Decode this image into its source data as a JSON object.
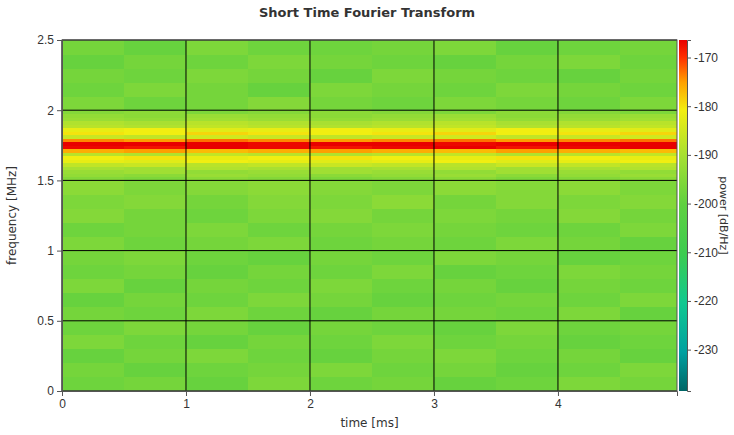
{
  "chart_data": {
    "type": "heatmap",
    "title": "Short Time Fourier Transform",
    "x_label": "time [ms]",
    "y_label": "frequency [MHz]",
    "xlim": [
      0,
      4.96
    ],
    "xticks": [
      0,
      1,
      2,
      3,
      4
    ],
    "ylim": [
      0,
      2.5
    ],
    "yticks": [
      0,
      0.5,
      1,
      1.5,
      2,
      2.5
    ],
    "grid": true,
    "time_bins": [
      0,
      0.5,
      1,
      1.5,
      2,
      2.5,
      3,
      3.5,
      4,
      4.5,
      4.96
    ],
    "frequency_bins": [
      0,
      0.1,
      0.2,
      0.3,
      0.4,
      0.5,
      0.6,
      0.7,
      0.8,
      0.9,
      1,
      1.1,
      1.2,
      1.3,
      1.4,
      1.5,
      1.525,
      1.55,
      1.575,
      1.6,
      1.625,
      1.65,
      1.675,
      1.7,
      1.725,
      1.75,
      1.775,
      1.8,
      1.825,
      1.85,
      1.875,
      1.9,
      1.925,
      1.95,
      1.975,
      2,
      2.1,
      2.2,
      2.3,
      2.4,
      2.5
    ],
    "z": [
      [
        -198,
        -197,
        -199,
        -196,
        -198,
        -197,
        -199,
        -198,
        -196,
        -197
      ],
      [
        -197,
        -199,
        -198,
        -197,
        -196,
        -198,
        -197,
        -199,
        -198,
        -196
      ],
      [
        -199,
        -197,
        -196,
        -198,
        -199,
        -197,
        -196,
        -198,
        -197,
        -199
      ],
      [
        -196,
        -198,
        -199,
        -197,
        -198,
        -196,
        -198,
        -197,
        -199,
        -198
      ],
      [
        -198,
        -196,
        -197,
        -199,
        -197,
        -198,
        -199,
        -196,
        -198,
        -197
      ],
      [
        -197,
        -198,
        -196,
        -198,
        -199,
        -197,
        -197,
        -198,
        -196,
        -199
      ],
      [
        -199,
        -197,
        -198,
        -196,
        -197,
        -199,
        -198,
        -197,
        -198,
        -196
      ],
      [
        -196,
        -199,
        -197,
        -198,
        -196,
        -198,
        -197,
        -199,
        -197,
        -198
      ],
      [
        -198,
        -197,
        -199,
        -197,
        -198,
        -196,
        -199,
        -198,
        -196,
        -197
      ],
      [
        -197,
        -196,
        -198,
        -199,
        -197,
        -198,
        -196,
        -197,
        -199,
        -198
      ],
      [
        -196,
        -198,
        -197,
        -196,
        -198,
        -197,
        -198,
        -196,
        -197,
        -199
      ],
      [
        -198,
        -197,
        -196,
        -198,
        -197,
        -196,
        -197,
        -198,
        -198,
        -196
      ],
      [
        -195,
        -197,
        -198,
        -196,
        -195,
        -197,
        -196,
        -197,
        -195,
        -197
      ],
      [
        -196,
        -195,
        -197,
        -195,
        -196,
        -194,
        -197,
        -195,
        -196,
        -195
      ],
      [
        -194,
        -196,
        -195,
        -194,
        -195,
        -196,
        -194,
        -195,
        -194,
        -196
      ],
      [
        -195,
        -196,
        -194,
        -195,
        -196,
        -195,
        -194,
        -196,
        -195,
        -194
      ],
      [
        -193,
        -194,
        -192,
        -193,
        -194,
        -193,
        -192,
        -194,
        -193,
        -192
      ],
      [
        -192,
        -191,
        -193,
        -192,
        -191,
        -192,
        -193,
        -191,
        -192,
        -193
      ],
      [
        -190,
        -191,
        -189,
        -190,
        -191,
        -190,
        -189,
        -191,
        -190,
        -189
      ],
      [
        -187,
        -186,
        -188,
        -187,
        -186,
        -187,
        -188,
        -186,
        -187,
        -188
      ],
      [
        -182,
        -183,
        -181,
        -182,
        -183,
        -182,
        -181,
        -183,
        -182,
        -181
      ],
      [
        -181,
        -180,
        -182,
        -181,
        -180,
        -181,
        -182,
        -180,
        -181,
        -182
      ],
      [
        -188,
        -189,
        -187,
        -188,
        -189,
        -188,
        -187,
        -189,
        -188,
        -187
      ],
      [
        -176,
        -175,
        -177,
        -176,
        -175,
        -176,
        -177,
        -175,
        -176,
        -177
      ],
      [
        -167,
        -168,
        -166,
        -167,
        -168,
        -167,
        -166,
        -168,
        -167,
        -166
      ],
      [
        -166,
        -165,
        -166,
        -167,
        -165,
        -166,
        -167,
        -165,
        -166,
        -165
      ],
      [
        -174,
        -175,
        -173,
        -174,
        -175,
        -174,
        -173,
        -175,
        -174,
        -173
      ],
      [
        -186,
        -187,
        -185,
        -186,
        -187,
        -186,
        -185,
        -187,
        -186,
        -185
      ],
      [
        -180,
        -181,
        -179,
        -180,
        -181,
        -180,
        -179,
        -181,
        -180,
        -179
      ],
      [
        -182,
        -181,
        -183,
        -182,
        -181,
        -182,
        -183,
        -181,
        -182,
        -183
      ],
      [
        -188,
        -189,
        -187,
        -188,
        -189,
        -188,
        -187,
        -189,
        -188,
        -187
      ],
      [
        -189,
        -190,
        -188,
        -189,
        -190,
        -189,
        -188,
        -190,
        -189,
        -188
      ],
      [
        -192,
        -193,
        -191,
        -192,
        -193,
        -192,
        -191,
        -193,
        -192,
        -191
      ],
      [
        -193,
        -194,
        -192,
        -193,
        -194,
        -193,
        -192,
        -194,
        -193,
        -192
      ],
      [
        -195,
        -194,
        -196,
        -195,
        -194,
        -195,
        -196,
        -194,
        -195,
        -196
      ],
      [
        -196,
        -198,
        -197,
        -195,
        -197,
        -198,
        -196,
        -197,
        -198,
        -196
      ],
      [
        -198,
        -196,
        -197,
        -199,
        -196,
        -197,
        -198,
        -196,
        -197,
        -198
      ],
      [
        -197,
        -198,
        -196,
        -197,
        -199,
        -196,
        -197,
        -198,
        -199,
        -197
      ],
      [
        -199,
        -197,
        -198,
        -196,
        -197,
        -198,
        -199,
        -197,
        -196,
        -198
      ],
      [
        -197,
        -199,
        -196,
        -198,
        -198,
        -197,
        -196,
        -199,
        -198,
        -197
      ]
    ],
    "colorbar": {
      "label": "power [dB/Hz]",
      "lim": [
        -238.5,
        -166.4
      ],
      "ticks": [
        -230,
        -220,
        -210,
        -200,
        -190,
        -180,
        -170
      ]
    }
  }
}
